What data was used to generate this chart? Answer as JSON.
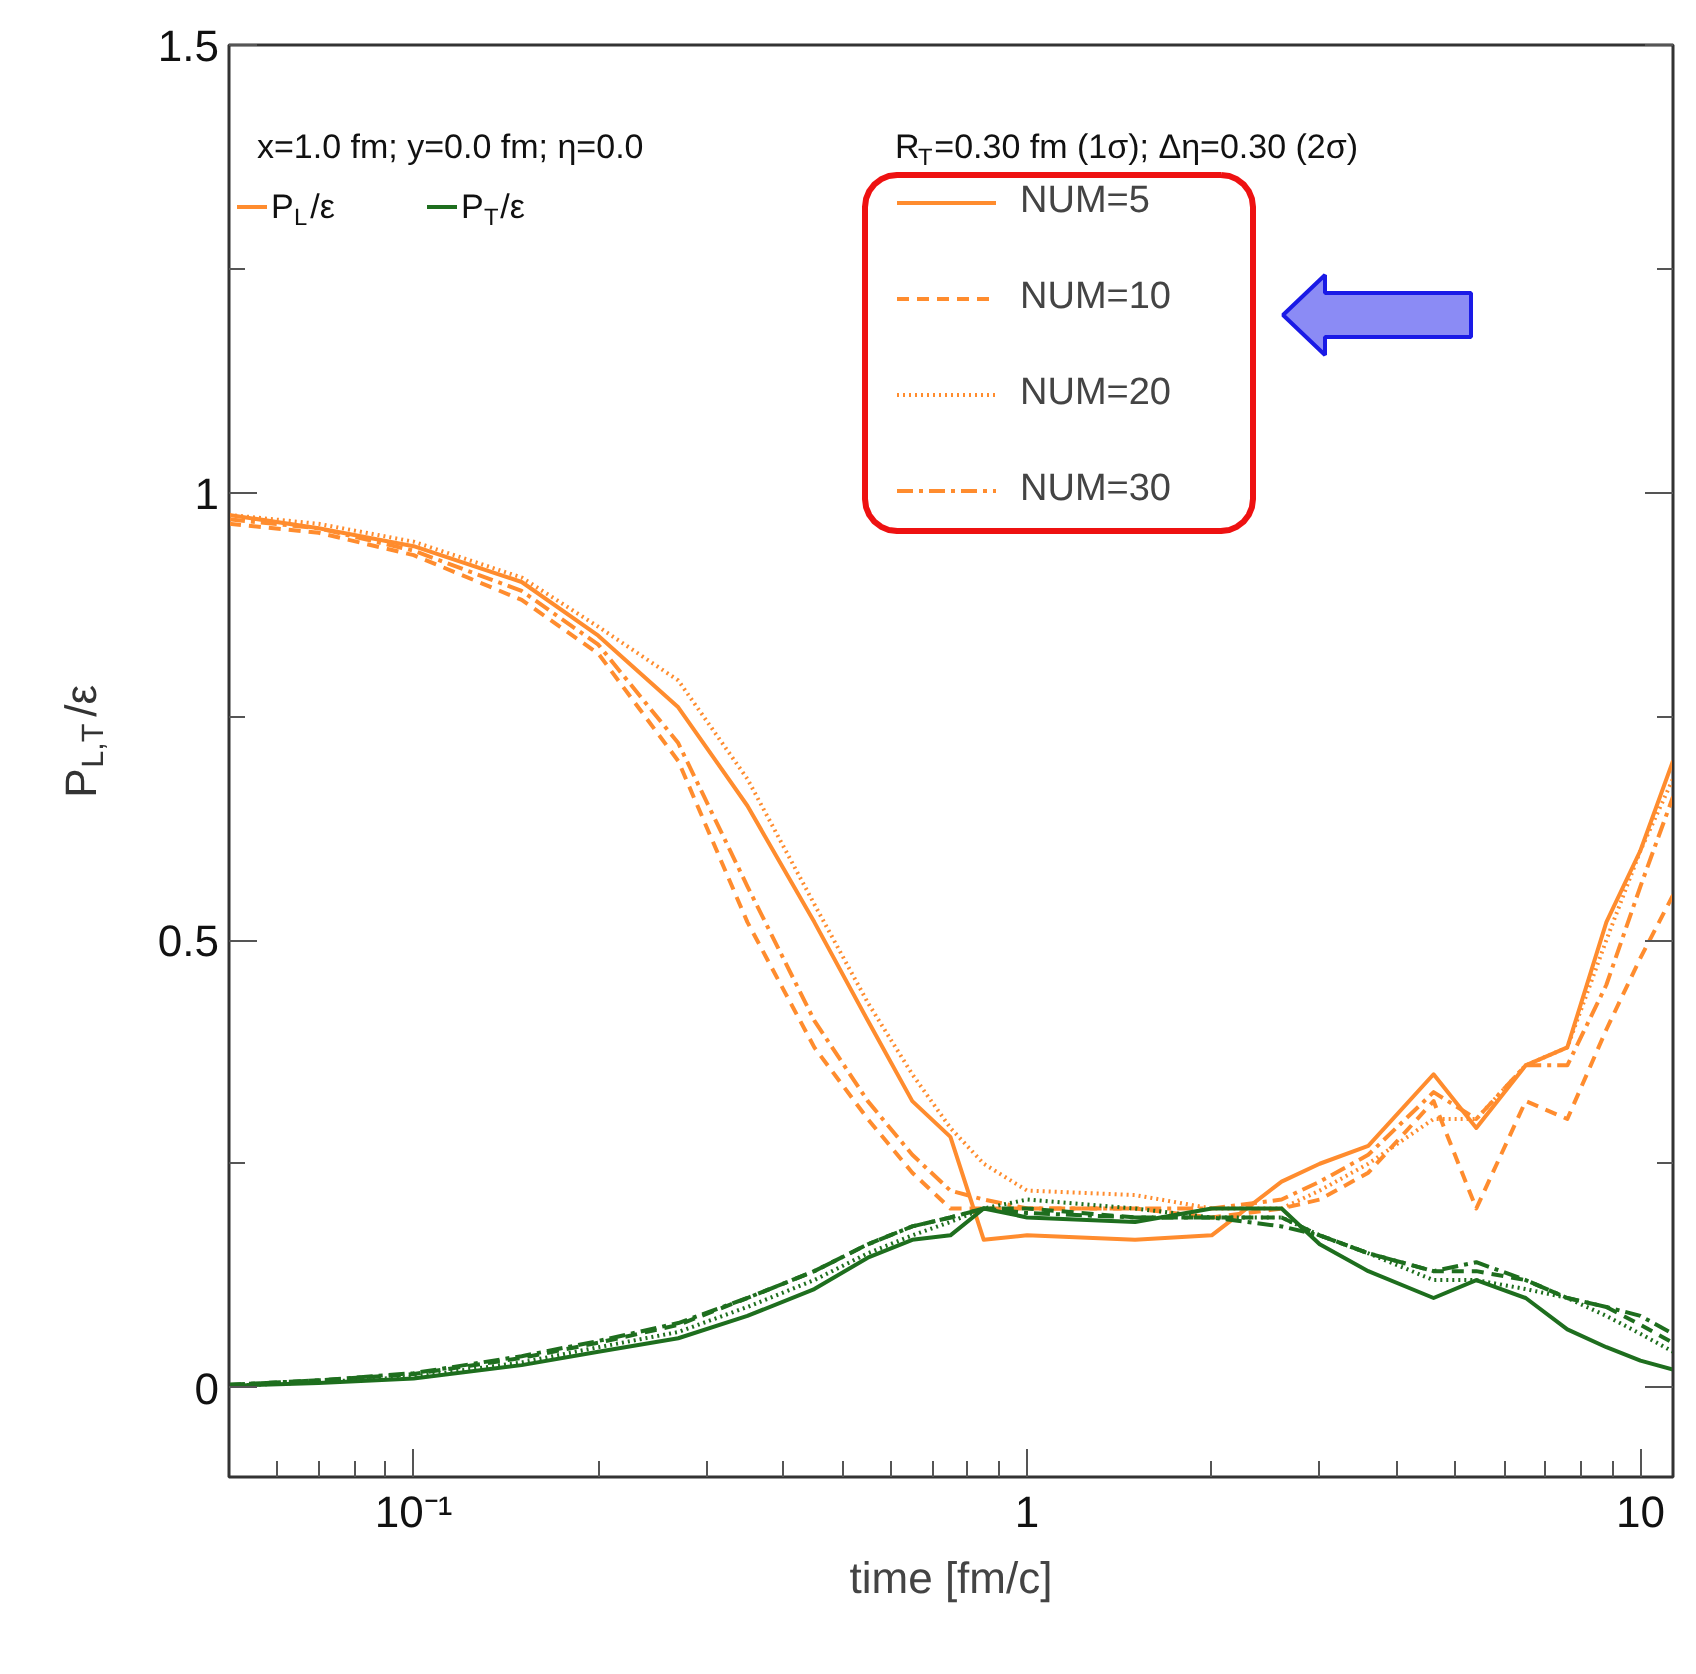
{
  "chart_data": {
    "type": "line",
    "xlabel": "time [fm/c]",
    "ylabel": "P$_{L,T}$/ε",
    "log": "x",
    "grid": false,
    "xlim": [
      0.05,
      11.3
    ],
    "ylim": [
      -0.1,
      1.5
    ],
    "xticks": [
      {
        "value": 0.06,
        "label": null
      },
      {
        "value": 0.07,
        "label": null
      },
      {
        "value": 0.08,
        "label": null
      },
      {
        "value": 0.09,
        "label": null
      },
      {
        "value": 0.1,
        "label": "10⁻¹"
      },
      {
        "value": 0.2,
        "label": null
      },
      {
        "value": 0.3,
        "label": null
      },
      {
        "value": 0.4,
        "label": null
      },
      {
        "value": 0.5,
        "label": null
      },
      {
        "value": 0.6,
        "label": null
      },
      {
        "value": 0.7,
        "label": null
      },
      {
        "value": 0.8,
        "label": null
      },
      {
        "value": 0.9,
        "label": null
      },
      1,
      {
        "value": 2,
        "label": null
      },
      {
        "value": 3,
        "label": null
      },
      {
        "value": 4,
        "label": null
      },
      {
        "value": 5,
        "label": null
      },
      {
        "value": 6,
        "label": null
      },
      {
        "value": 7,
        "label": null
      },
      {
        "value": 8,
        "label": null
      },
      {
        "value": 9,
        "label": null
      },
      10
    ],
    "yticks": [
      0,
      {
        "value": 0.25,
        "label": null
      },
      0.5,
      {
        "value": 0.75,
        "label": null
      },
      1,
      {
        "value": 1.25,
        "label": null
      },
      1.5
    ],
    "annotations": [
      "x=1.0 fm; y=0.0 fm; η=0.0",
      "R$_{T}$=0.30 fm (1σ); Δη=0.30 (2σ)",
      "P$_{L}$/ε",
      "P$_{T}$/ε",
      "NUM=5",
      "NUM=10",
      "NUM=20",
      "NUM=30"
    ],
    "x": [
      0.05,
      0.07,
      0.1,
      0.15,
      0.2,
      0.27,
      0.35,
      0.45,
      0.55,
      0.65,
      0.75,
      0.85,
      1,
      1.5,
      2,
      2.6,
      3,
      3.6,
      4.6,
      5.4,
      6.5,
      7.6,
      8.8,
      10,
      11.3
    ],
    "series": [
      {
        "color": "#ff8c2e",
        "line_style": "solid",
        "values": [
          0.975,
          0.96,
          0.94,
          0.9,
          0.84,
          0.76,
          0.65,
          0.52,
          0.41,
          0.32,
          0.28,
          0.165,
          0.17,
          0.165,
          0.17,
          0.23,
          0.25,
          0.27,
          0.35,
          0.29,
          0.36,
          0.38,
          0.52,
          0.6,
          0.7
        ]
      },
      {
        "color": "#ff8c2e",
        "line_style": "dashed",
        "values": [
          0.965,
          0.955,
          0.93,
          0.88,
          0.82,
          0.7,
          0.52,
          0.38,
          0.3,
          0.24,
          0.2,
          0.2,
          0.2,
          0.2,
          0.19,
          0.2,
          0.21,
          0.24,
          0.32,
          0.2,
          0.32,
          0.3,
          0.4,
          0.48,
          0.55
        ]
      },
      {
        "color": "#ff8c2e",
        "line_style": "dotted",
        "values": [
          0.975,
          0.965,
          0.945,
          0.905,
          0.85,
          0.79,
          0.68,
          0.54,
          0.43,
          0.35,
          0.29,
          0.25,
          0.22,
          0.215,
          0.2,
          0.2,
          0.22,
          0.25,
          0.3,
          0.3,
          0.36,
          0.38,
          0.5,
          0.6,
          0.68
        ]
      },
      {
        "color": "#ff8c2e",
        "line_style": "dashdot",
        "values": [
          0.97,
          0.96,
          0.935,
          0.89,
          0.83,
          0.72,
          0.56,
          0.41,
          0.32,
          0.26,
          0.22,
          0.21,
          0.2,
          0.2,
          0.2,
          0.21,
          0.23,
          0.26,
          0.33,
          0.3,
          0.36,
          0.36,
          0.45,
          0.56,
          0.66
        ]
      },
      {
        "color": "#1e6e1e",
        "line_style": "solid",
        "values": [
          0.002,
          0.005,
          0.01,
          0.025,
          0.04,
          0.055,
          0.08,
          0.11,
          0.145,
          0.165,
          0.17,
          0.2,
          0.19,
          0.185,
          0.2,
          0.2,
          0.16,
          0.13,
          0.1,
          0.12,
          0.1,
          0.065,
          0.045,
          0.03,
          0.02
        ]
      },
      {
        "color": "#1e6e1e",
        "line_style": "dashed",
        "values": [
          0.003,
          0.008,
          0.015,
          0.033,
          0.05,
          0.07,
          0.1,
          0.13,
          0.16,
          0.18,
          0.19,
          0.2,
          0.2,
          0.19,
          0.19,
          0.19,
          0.17,
          0.15,
          0.13,
          0.13,
          0.12,
          0.1,
          0.09,
          0.07,
          0.05
        ]
      },
      {
        "color": "#1e6e1e",
        "line_style": "dotted",
        "values": [
          0.002,
          0.006,
          0.012,
          0.028,
          0.045,
          0.062,
          0.09,
          0.12,
          0.15,
          0.17,
          0.185,
          0.2,
          0.21,
          0.2,
          0.19,
          0.19,
          0.17,
          0.15,
          0.12,
          0.12,
          0.11,
          0.1,
          0.08,
          0.06,
          0.04
        ]
      },
      {
        "color": "#1e6e1e",
        "line_style": "dashdot",
        "values": [
          0.003,
          0.008,
          0.016,
          0.035,
          0.052,
          0.072,
          0.1,
          0.13,
          0.16,
          0.18,
          0.19,
          0.2,
          0.195,
          0.19,
          0.19,
          0.18,
          0.17,
          0.15,
          0.13,
          0.14,
          0.12,
          0.1,
          0.09,
          0.08,
          0.06
        ]
      }
    ]
  }
}
